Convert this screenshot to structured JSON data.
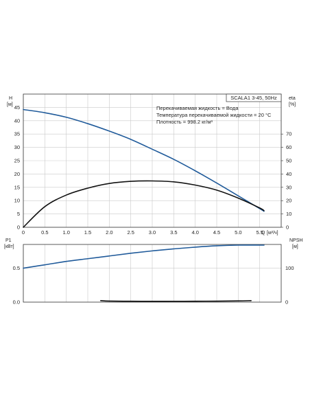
{
  "chart_data": [
    {
      "id": "head_efficiency",
      "type": "line",
      "title": "SCALA1 3-45, 50Hz",
      "notes": [
        "Перекачиваемая жидкость = Вода",
        "Температура перекачиваемой жидкости = 20 °C",
        "Плотность = 998.2 кг/м³"
      ],
      "xlabel": "Q",
      "xunit": "[м³/ч]",
      "x_ticks": [
        "0",
        "0.5",
        "1.0",
        "1.5",
        "2.0",
        "2.5",
        "3.0",
        "3.5",
        "4.0",
        "4.5",
        "5.0",
        "5.5"
      ],
      "xlim": [
        0,
        6
      ],
      "ylabel_left": "H",
      "yunit_left": "[м]",
      "y_ticks_left": [
        "0",
        "5",
        "10",
        "15",
        "20",
        "25",
        "30",
        "35",
        "40",
        "45"
      ],
      "ylim_left": [
        0,
        50
      ],
      "ylabel_right": "eta",
      "yunit_right": "[%]",
      "y_ticks_right": [
        "0",
        "10",
        "20",
        "30",
        "40",
        "50",
        "60",
        "70"
      ],
      "ylim_right": [
        0,
        100
      ],
      "grid": true,
      "series": [
        {
          "axis": "left",
          "color": "#1f5a9a",
          "x": [
            0,
            0.5,
            1.0,
            1.5,
            2.0,
            2.5,
            3.0,
            3.5,
            4.0,
            4.5,
            5.0,
            5.5,
            5.6
          ],
          "y": [
            44.2,
            43.0,
            41.3,
            38.9,
            36.1,
            33.0,
            29.3,
            25.5,
            21.2,
            16.6,
            11.8,
            7.0,
            6.0
          ]
        },
        {
          "axis": "right",
          "color": "#111111",
          "x": [
            0,
            0.5,
            1.0,
            1.5,
            2.0,
            2.5,
            3.0,
            3.5,
            4.0,
            4.5,
            5.0,
            5.5,
            5.6
          ],
          "y": [
            0,
            15.5,
            24.2,
            29.4,
            32.9,
            34.5,
            34.8,
            34.1,
            31.7,
            27.9,
            21.9,
            14.5,
            12.5
          ]
        }
      ]
    },
    {
      "id": "power_npsh",
      "type": "line",
      "xlim": [
        0,
        6
      ],
      "ylabel_left": "P1",
      "yunit_left": "[кВт]",
      "y_ticks_left": [
        "0.0",
        "0.5"
      ],
      "ylim_left": [
        0,
        0.85
      ],
      "ylabel_right": "NPSH",
      "yunit_right": "[м]",
      "y_ticks_right": [
        "0",
        "100"
      ],
      "ylim_right": [
        0,
        170
      ],
      "grid": true,
      "series": [
        {
          "axis": "left",
          "color": "#1f5a9a",
          "x": [
            0,
            0.5,
            1.0,
            1.5,
            2.0,
            2.5,
            3.0,
            3.5,
            4.0,
            4.5,
            5.0,
            5.5,
            5.6
          ],
          "y": [
            0.5,
            0.55,
            0.6,
            0.64,
            0.68,
            0.72,
            0.755,
            0.785,
            0.81,
            0.83,
            0.84,
            0.84,
            0.84
          ]
        },
        {
          "axis": "right",
          "color": "#111111",
          "x": [
            1.8,
            2.0,
            2.5,
            3.0,
            3.5,
            4.0,
            4.5,
            5.0,
            5.3
          ],
          "y": [
            4.5,
            3.2,
            2.6,
            2.4,
            2.5,
            2.6,
            3.0,
            3.6,
            4.5
          ]
        }
      ]
    }
  ]
}
